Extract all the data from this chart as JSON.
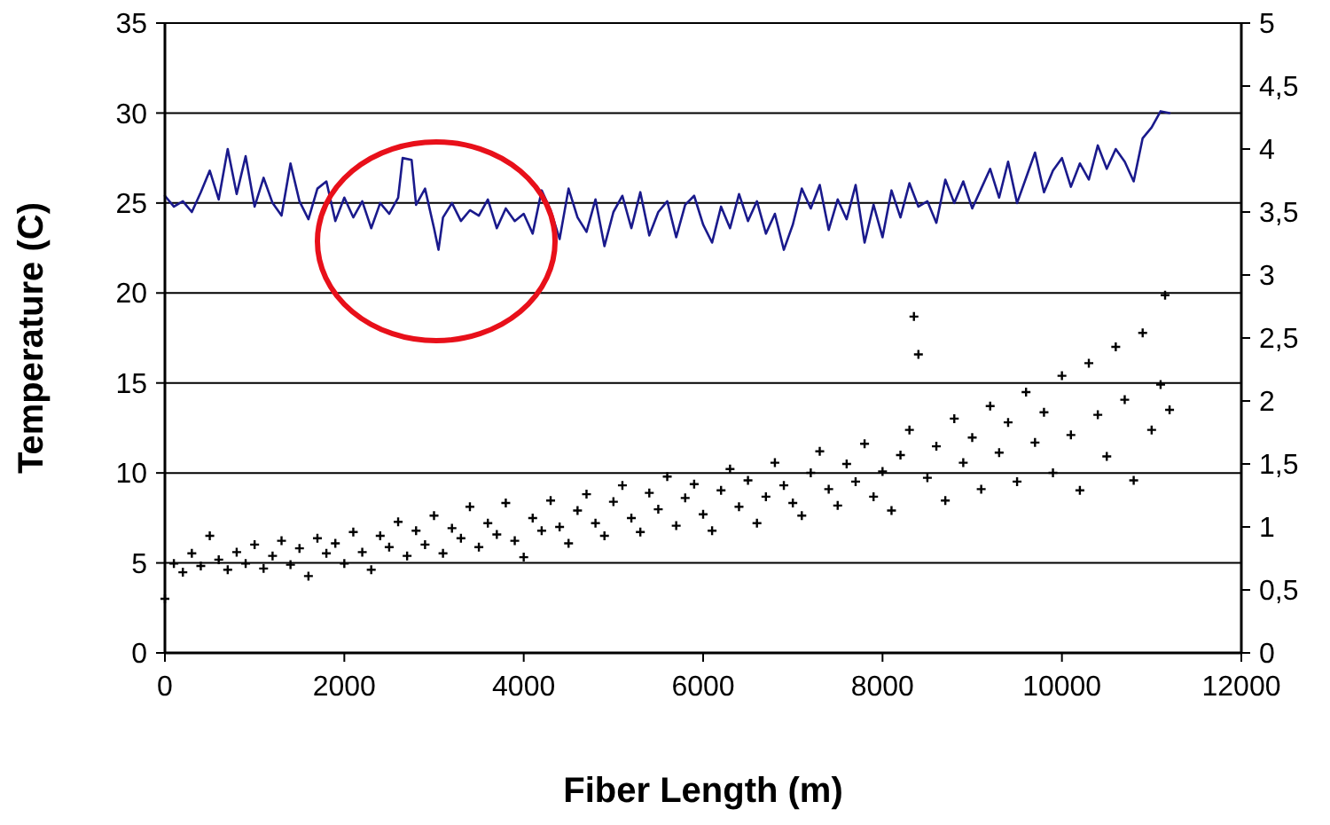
{
  "chart_data": {
    "type": "line",
    "xlabel": "Fiber Length (m)",
    "ylabel": "Temperature (C)",
    "xlim": [
      0,
      12000
    ],
    "xticks": [
      0,
      2000,
      4000,
      6000,
      8000,
      10000,
      12000
    ],
    "ylim": [
      0,
      35
    ],
    "yticks": [
      0,
      5,
      10,
      15,
      20,
      25,
      30,
      35
    ],
    "y2lim": [
      0,
      5
    ],
    "y2ticks": [
      0,
      {
        "value": 0.5,
        "label": "0,5"
      },
      1,
      {
        "value": 1.5,
        "label": "1,5"
      },
      2,
      {
        "value": 2.5,
        "label": "2,5"
      },
      3,
      {
        "value": 3.5,
        "label": "3,5"
      },
      4,
      {
        "value": 4.5,
        "label": "4,5"
      },
      5
    ],
    "grid": "y",
    "series": [
      {
        "color": "#1a1a8c",
        "marker": "none",
        "line_style": "solid",
        "x": [
          0,
          100,
          200,
          300,
          400,
          500,
          600,
          700,
          800,
          900,
          1000,
          1100,
          1200,
          1300,
          1400,
          1500,
          1600,
          1700,
          1800,
          1900,
          2000,
          2100,
          2200,
          2300,
          2400,
          2500,
          2600,
          2650,
          2750,
          2800,
          2900,
          3000,
          3050,
          3100,
          3200,
          3300,
          3400,
          3500,
          3600,
          3700,
          3800,
          3900,
          4000,
          4100,
          4200,
          4300,
          4400,
          4500,
          4600,
          4700,
          4800,
          4900,
          5000,
          5100,
          5200,
          5300,
          5400,
          5500,
          5600,
          5700,
          5800,
          5900,
          6000,
          6100,
          6200,
          6300,
          6400,
          6500,
          6600,
          6700,
          6800,
          6900,
          7000,
          7100,
          7200,
          7300,
          7400,
          7500,
          7600,
          7700,
          7800,
          7900,
          8000,
          8100,
          8200,
          8300,
          8400,
          8500,
          8600,
          8700,
          8800,
          8900,
          9000,
          9100,
          9200,
          9300,
          9400,
          9500,
          9600,
          9700,
          9800,
          9900,
          10000,
          10100,
          10200,
          10300,
          10400,
          10500,
          10600,
          10700,
          10800,
          10900,
          11000,
          11100,
          11200
        ],
        "values": [
          25.4,
          24.8,
          25.1,
          24.5,
          25.6,
          26.8,
          25.2,
          28.0,
          25.5,
          27.6,
          24.8,
          26.4,
          25.0,
          24.3,
          27.2,
          25.1,
          24.1,
          25.8,
          26.2,
          24.0,
          25.3,
          24.2,
          25.1,
          23.6,
          25.0,
          24.4,
          25.3,
          27.5,
          27.4,
          24.9,
          25.8,
          23.6,
          22.4,
          24.2,
          25.0,
          24.0,
          24.6,
          24.3,
          25.2,
          23.6,
          24.7,
          24.0,
          24.4,
          23.3,
          25.7,
          24.6,
          23.0,
          25.8,
          24.2,
          23.4,
          25.2,
          22.6,
          24.5,
          25.4,
          23.6,
          25.6,
          23.2,
          24.5,
          25.1,
          23.1,
          24.9,
          25.4,
          23.8,
          22.8,
          24.8,
          23.6,
          25.5,
          24.0,
          25.1,
          23.3,
          24.4,
          22.4,
          23.8,
          25.8,
          24.7,
          26.0,
          23.5,
          25.2,
          24.1,
          26.0,
          22.8,
          24.9,
          23.1,
          25.7,
          24.2,
          26.1,
          24.8,
          25.1,
          23.9,
          26.3,
          25.0,
          26.2,
          24.7,
          25.8,
          26.9,
          25.3,
          27.3,
          25.0,
          26.4,
          27.8,
          25.6,
          26.8,
          27.5,
          25.9,
          27.2,
          26.3,
          28.2,
          26.9,
          28.0,
          27.3,
          26.2,
          28.6,
          29.2,
          30.1,
          30.0
        ]
      },
      {
        "type": "scatter",
        "axis": "y2",
        "color": "#000000",
        "marker": "cross",
        "x": [
          0,
          100,
          200,
          300,
          400,
          500,
          600,
          700,
          800,
          900,
          1000,
          1100,
          1200,
          1300,
          1400,
          1500,
          1600,
          1700,
          1800,
          1900,
          2000,
          2100,
          2200,
          2300,
          2400,
          2500,
          2600,
          2700,
          2800,
          2900,
          3000,
          3100,
          3200,
          3300,
          3400,
          3500,
          3600,
          3700,
          3800,
          3900,
          4000,
          4100,
          4200,
          4300,
          4400,
          4500,
          4600,
          4700,
          4800,
          4900,
          5000,
          5100,
          5200,
          5300,
          5400,
          5500,
          5600,
          5700,
          5800,
          5900,
          6000,
          6100,
          6200,
          6300,
          6400,
          6500,
          6600,
          6700,
          6800,
          6900,
          7000,
          7100,
          7200,
          7300,
          7400,
          7500,
          7600,
          7700,
          7800,
          7900,
          8000,
          8100,
          8200,
          8300,
          8350,
          8400,
          8500,
          8600,
          8700,
          8800,
          8900,
          9000,
          9100,
          9200,
          9300,
          9400,
          9500,
          9600,
          9700,
          9800,
          9900,
          10000,
          10100,
          10200,
          10300,
          10400,
          10500,
          10600,
          10700,
          10800,
          10900,
          11000,
          11100,
          11150,
          11200
        ],
        "values": [
          0.43,
          0.71,
          0.64,
          0.79,
          0.69,
          0.93,
          0.74,
          0.66,
          0.8,
          0.71,
          0.86,
          0.67,
          0.77,
          0.89,
          0.7,
          0.83,
          0.61,
          0.91,
          0.79,
          0.87,
          0.71,
          0.96,
          0.8,
          0.66,
          0.93,
          0.84,
          1.04,
          0.77,
          0.97,
          0.86,
          1.09,
          0.79,
          0.99,
          0.91,
          1.16,
          0.84,
          1.03,
          0.94,
          1.19,
          0.89,
          0.76,
          1.07,
          0.97,
          1.21,
          1.0,
          0.87,
          1.13,
          1.26,
          1.03,
          0.93,
          1.2,
          1.33,
          1.07,
          0.96,
          1.27,
          1.14,
          1.4,
          1.01,
          1.23,
          1.34,
          1.1,
          0.97,
          1.29,
          1.46,
          1.16,
          1.37,
          1.03,
          1.24,
          1.51,
          1.33,
          1.19,
          1.09,
          1.43,
          1.6,
          1.3,
          1.17,
          1.5,
          1.36,
          1.66,
          1.24,
          1.44,
          1.13,
          1.57,
          1.77,
          2.67,
          2.37,
          1.39,
          1.64,
          1.21,
          1.86,
          1.51,
          1.71,
          1.3,
          1.96,
          1.59,
          1.83,
          1.36,
          2.07,
          1.67,
          1.91,
          1.43,
          2.2,
          1.73,
          1.29,
          2.3,
          1.89,
          1.56,
          2.43,
          2.01,
          1.37,
          2.54,
          1.77,
          2.13,
          2.84,
          1.93
        ]
      }
    ]
  }
}
